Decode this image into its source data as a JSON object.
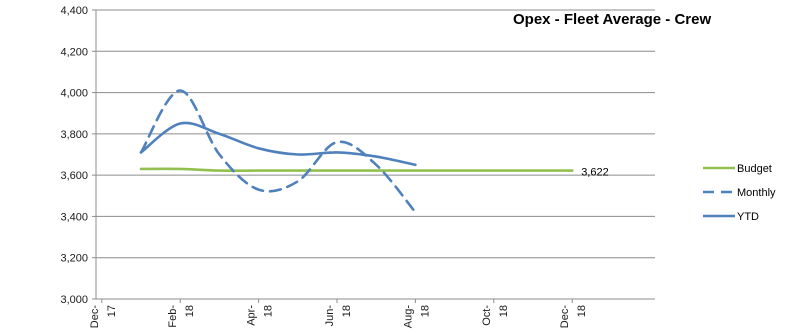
{
  "chart_data": {
    "type": "line",
    "title": "Opex - Fleet Average - Crew",
    "xlabel": "",
    "ylabel": "",
    "ylim": [
      3000,
      4400
    ],
    "y_ticks": [
      "3,000",
      "3,200",
      "3,400",
      "3,600",
      "3,800",
      "4,000",
      "4,200",
      "4,400"
    ],
    "x_tick_labels": [
      "Dec-17",
      "Feb-18",
      "Apr-18",
      "Jun-18",
      "Aug-18",
      "Oct-18",
      "Dec-18"
    ],
    "grid": true,
    "legend_position": "right",
    "end_label": "3,622",
    "series": [
      {
        "name": "Budget",
        "color": "#92c050",
        "dash": "solid",
        "x": [
          "Jan-18",
          "Feb-18",
          "Mar-18",
          "Apr-18",
          "May-18",
          "Jun-18",
          "Jul-18",
          "Aug-18",
          "Sep-18",
          "Oct-18",
          "Nov-18",
          "Dec-18"
        ],
        "values": [
          3630,
          3630,
          3622,
          3622,
          3622,
          3622,
          3622,
          3622,
          3622,
          3622,
          3622,
          3622
        ]
      },
      {
        "name": "Monthly",
        "color": "#4f81bd",
        "dash": "dashed",
        "x": [
          "Jan-18",
          "Feb-18",
          "Mar-18",
          "Apr-18",
          "May-18",
          "Jun-18",
          "Jul-18",
          "Aug-18"
        ],
        "values": [
          3710,
          4010,
          3700,
          3530,
          3570,
          3760,
          3650,
          3420
        ]
      },
      {
        "name": "YTD",
        "color": "#4f81bd",
        "dash": "solid",
        "x": [
          "Jan-18",
          "Feb-18",
          "Mar-18",
          "Apr-18",
          "May-18",
          "Jun-18",
          "Jul-18",
          "Aug-18"
        ],
        "values": [
          3710,
          3850,
          3800,
          3730,
          3700,
          3710,
          3690,
          3650
        ]
      }
    ]
  }
}
